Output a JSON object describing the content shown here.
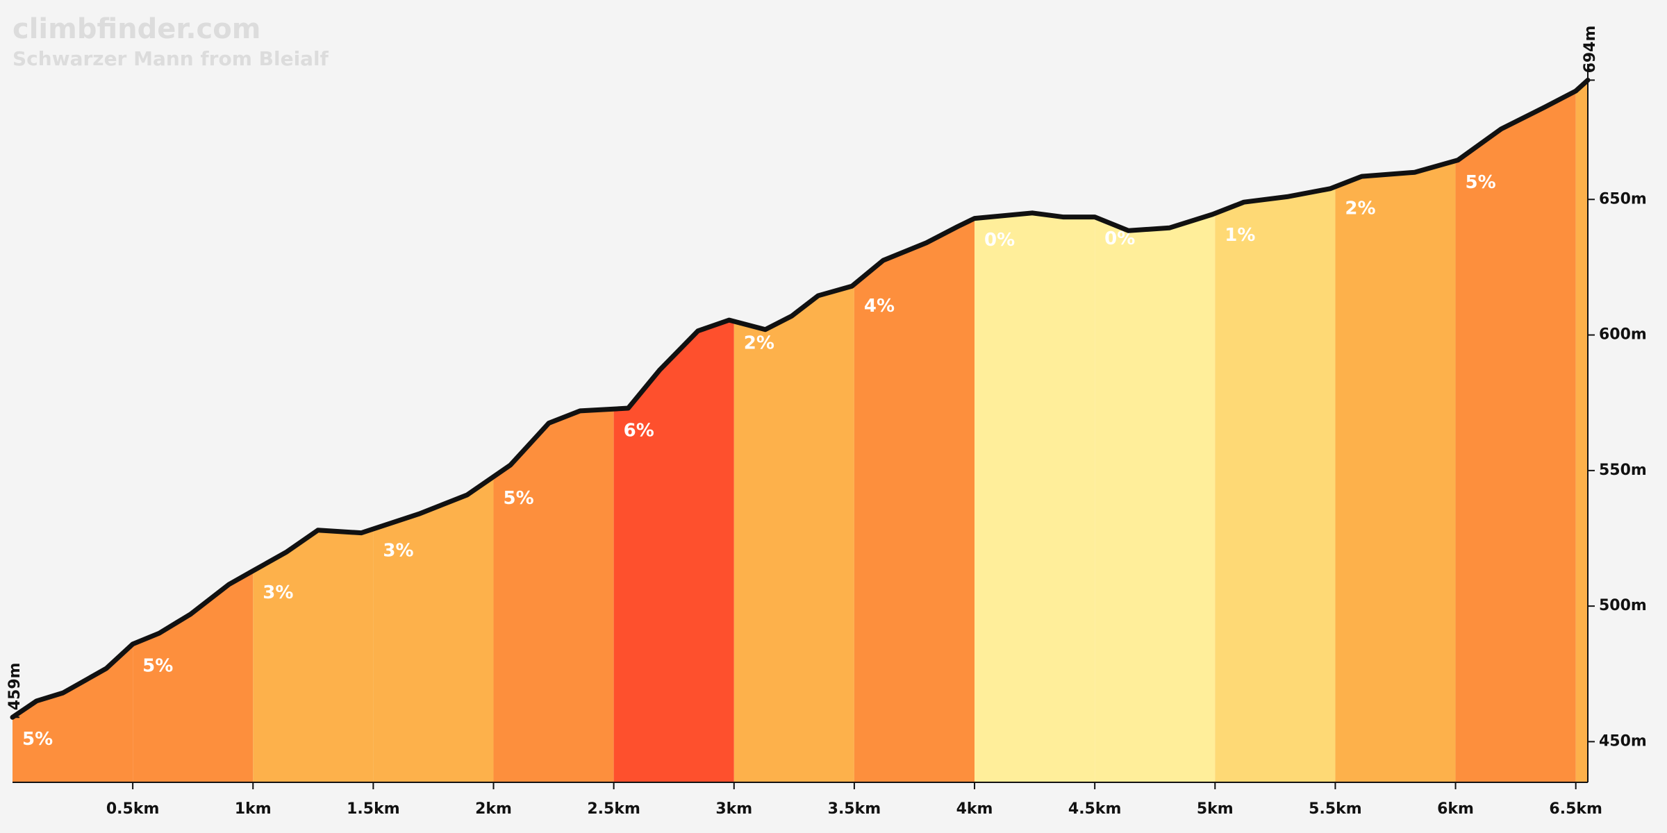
{
  "chart_data": {
    "type": "elevation-profile",
    "title": "climbfinder.com",
    "subtitle": "Schwarzer Mann from Bleialf",
    "xlim": [
      0,
      6.55
    ],
    "ylim": [
      435,
      700
    ],
    "xticks": [
      {
        "value": 0.5,
        "label": "0.5km"
      },
      {
        "value": 1,
        "label": "1km"
      },
      {
        "value": 1.5,
        "label": "1.5km"
      },
      {
        "value": 2,
        "label": "2km"
      },
      {
        "value": 2.5,
        "label": "2.5km"
      },
      {
        "value": 3,
        "label": "3km"
      },
      {
        "value": 3.5,
        "label": "3.5km"
      },
      {
        "value": 4,
        "label": "4km"
      },
      {
        "value": 4.5,
        "label": "4.5km"
      },
      {
        "value": 5,
        "label": "5km"
      },
      {
        "value": 5.5,
        "label": "5.5km"
      },
      {
        "value": 6,
        "label": "6km"
      },
      {
        "value": 6.5,
        "label": "6.5km"
      }
    ],
    "yticks": [
      {
        "value": 450,
        "label": "450m"
      },
      {
        "value": 500,
        "label": "500m"
      },
      {
        "value": 550,
        "label": "550m"
      },
      {
        "value": 600,
        "label": "600m"
      },
      {
        "value": 650,
        "label": "650m"
      }
    ],
    "profile": {
      "color": "#111111",
      "x": [
        0,
        0.1,
        0.21,
        0.39,
        0.5,
        0.61,
        0.74,
        0.9,
        1.0,
        1.14,
        1.27,
        1.45,
        1.69,
        1.89,
        2.07,
        2.23,
        2.36,
        2.56,
        2.69,
        2.85,
        2.98,
        3.13,
        3.24,
        3.35,
        3.49,
        3.62,
        3.8,
        3.93,
        4.0,
        4.24,
        4.37,
        4.5,
        4.64,
        4.81,
        4.99,
        5.12,
        5.3,
        5.48,
        5.61,
        5.83,
        6.01,
        6.19,
        6.37,
        6.5,
        6.55
      ],
      "y": [
        459,
        465,
        468,
        477,
        486,
        490,
        497,
        508,
        513,
        520,
        528,
        527,
        534,
        541,
        552,
        567.5,
        572,
        573,
        587,
        601.5,
        605.5,
        602,
        607,
        614.5,
        618,
        627.5,
        634,
        640,
        643,
        645,
        643.5,
        643.5,
        638.5,
        639.5,
        644.5,
        649,
        651,
        654,
        658.5,
        660,
        664.5,
        676,
        684,
        690,
        694
      ]
    },
    "segments": {
      "edges": [
        0,
        0.5,
        1,
        1.5,
        2,
        2.5,
        3,
        3.5,
        4,
        4.5,
        5,
        5.5,
        6,
        6.5,
        6.55
      ],
      "values": [
        5,
        5,
        3,
        3,
        5,
        6,
        2,
        4,
        0,
        0,
        1,
        2,
        5,
        null
      ],
      "value_labels": [
        "5%",
        "5%",
        "3%",
        "3%",
        "5%",
        "6%",
        "2%",
        "4%",
        "0%",
        "0%",
        "1%",
        "2%",
        "5%",
        null
      ],
      "colors": [
        "#fd8f3d",
        "#fd8f3d",
        "#fdb14b",
        "#fdb14b",
        "#fd8f3d",
        "#fe502d",
        "#fdb14b",
        "#fd8f3d",
        "#ffee9a",
        "#ffee9a",
        "#fed975",
        "#fdb14b",
        "#fd8f3d",
        "#fdb14b"
      ]
    },
    "annotations": [
      {
        "x": 0,
        "y": 459,
        "label": "459m"
      },
      {
        "x": 6.55,
        "y": 694,
        "label": "694m"
      }
    ]
  }
}
